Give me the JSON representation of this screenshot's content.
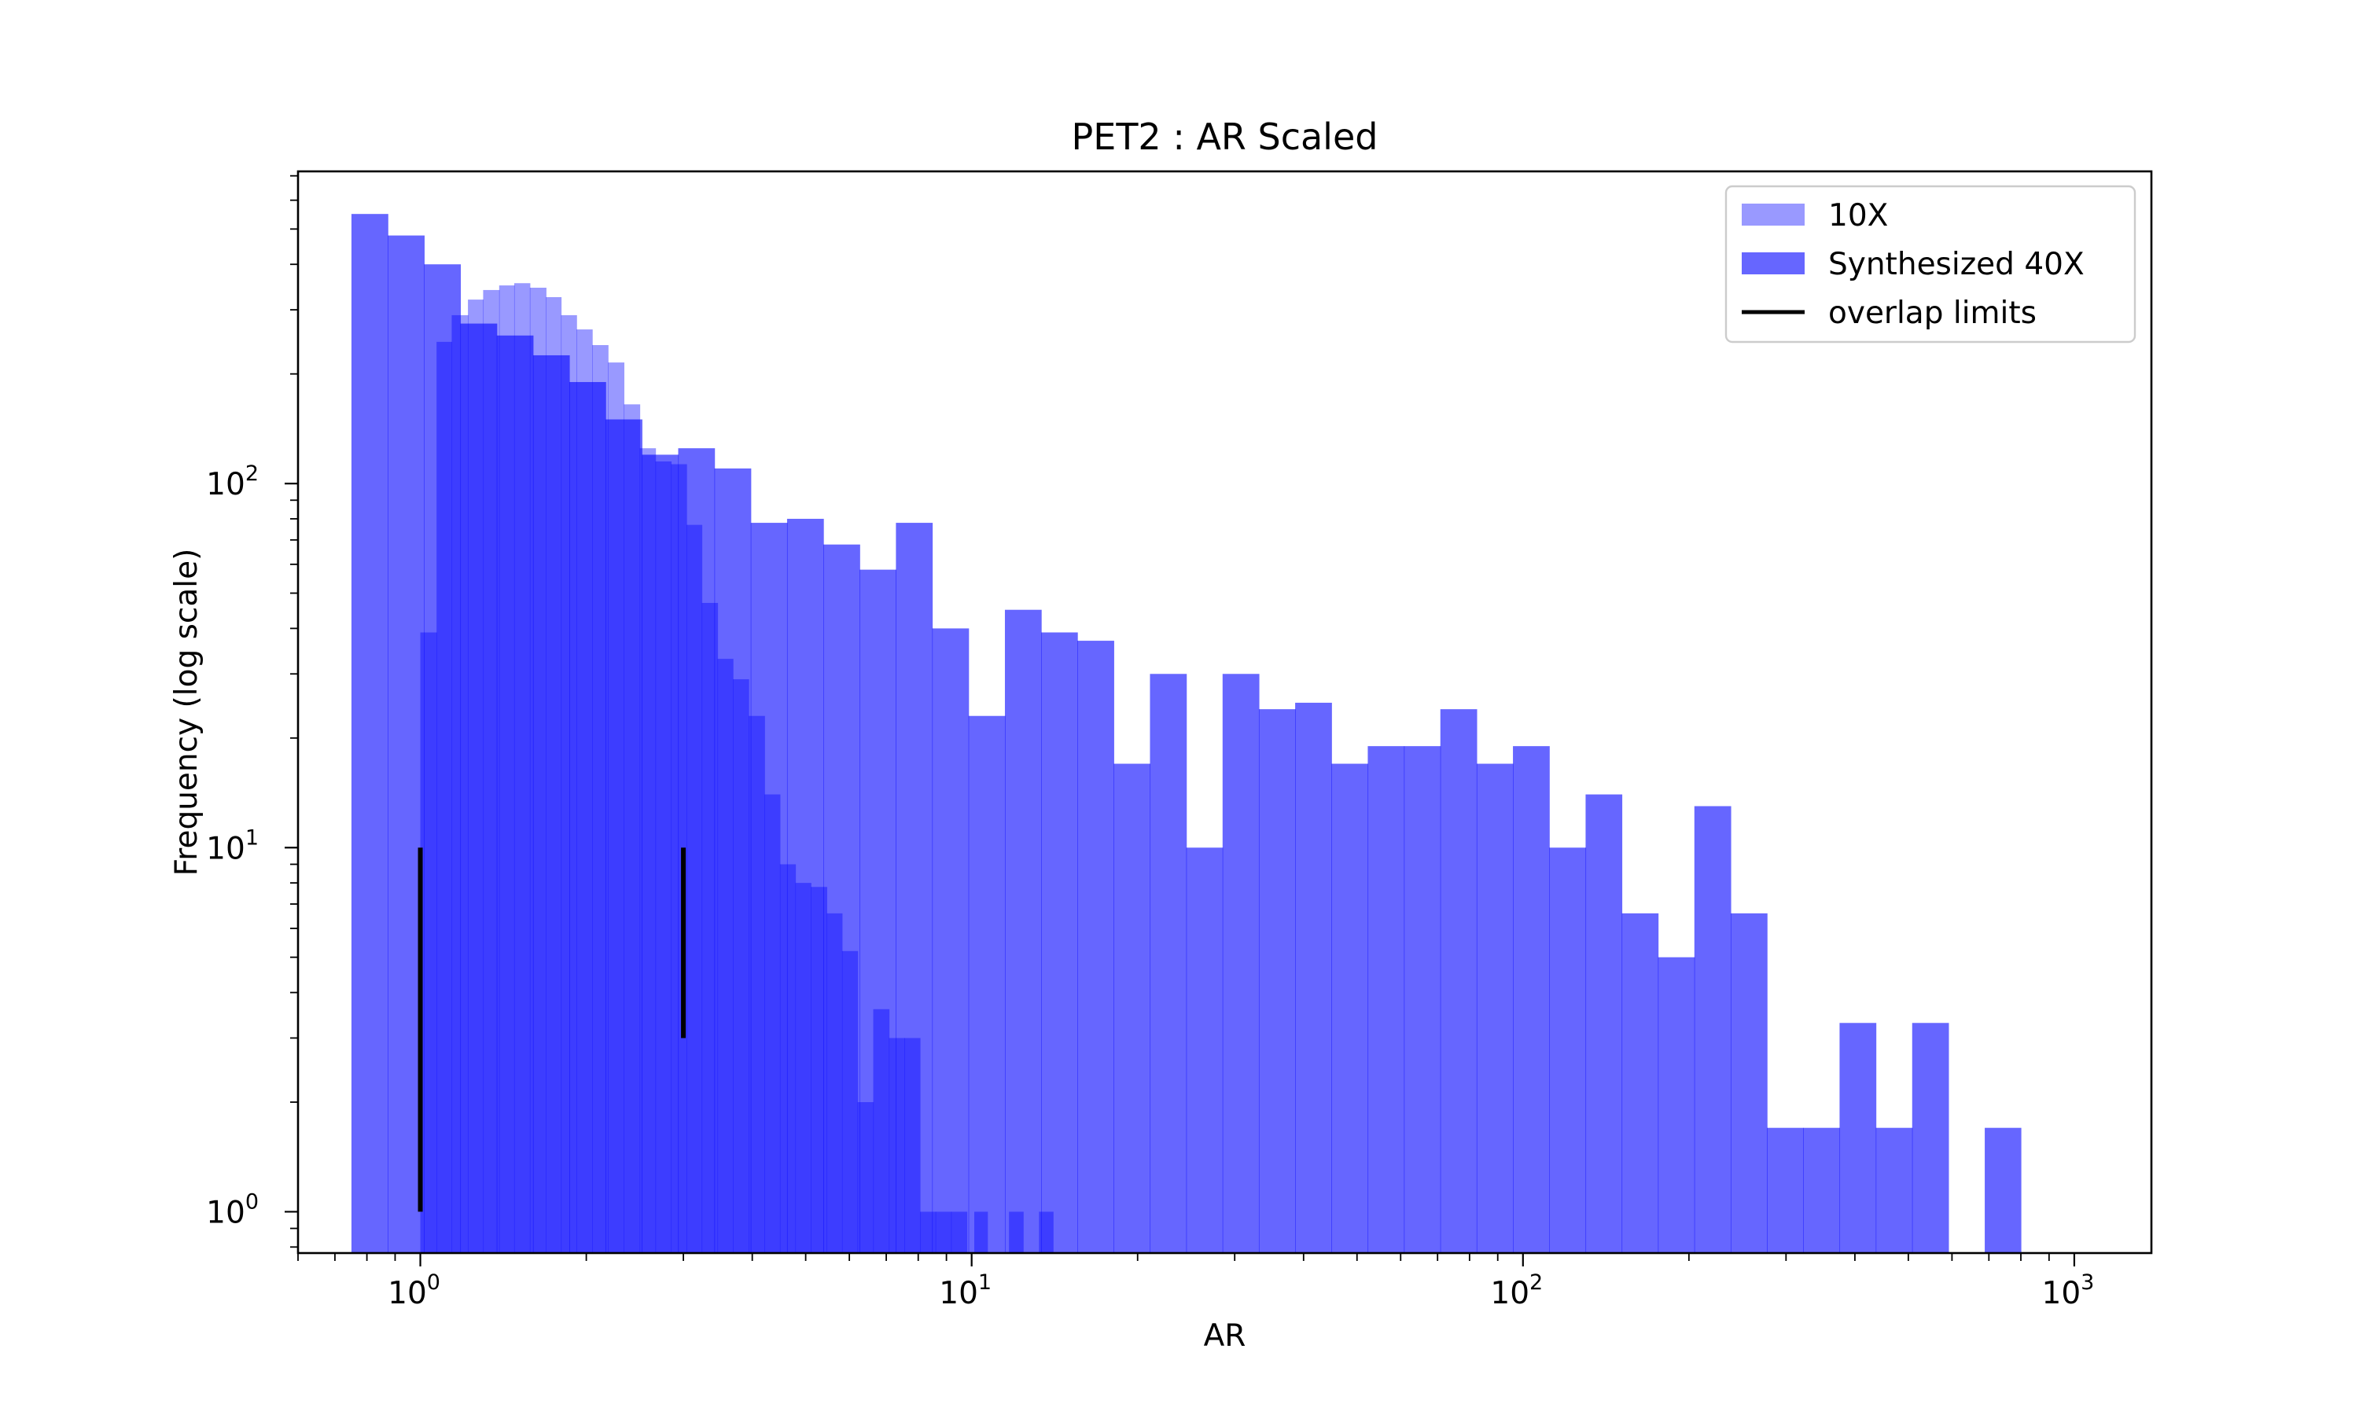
{
  "chart_data": {
    "type": "histogram",
    "title": "PET2 : AR Scaled",
    "xlabel": "AR",
    "ylabel": "Frequency (log scale)",
    "x_scale": "log",
    "y_scale": "log",
    "xlim": [
      0.6,
      1380
    ],
    "ylim": [
      0.77,
      720
    ],
    "x_ticks": [
      {
        "value": 1,
        "base": "10",
        "exp": "0"
      },
      {
        "value": 10,
        "base": "10",
        "exp": "1"
      },
      {
        "value": 100,
        "base": "10",
        "exp": "2"
      },
      {
        "value": 1000,
        "base": "10",
        "exp": "3"
      }
    ],
    "y_ticks": [
      {
        "value": 1,
        "base": "10",
        "exp": "0"
      },
      {
        "value": 10,
        "base": "10",
        "exp": "1"
      },
      {
        "value": 100,
        "base": "10",
        "exp": "2"
      }
    ],
    "legend": {
      "position": "upper right",
      "entries": [
        {
          "label": "10X",
          "kind": "patch",
          "color": "#9999ff"
        },
        {
          "label": "Synthesized 40X",
          "kind": "patch",
          "color": "#6666ff"
        },
        {
          "label": "overlap limits",
          "kind": "line",
          "color": "#000000"
        }
      ]
    },
    "series": [
      {
        "name": "10X",
        "color": "#0000ff",
        "opacity": 0.4,
        "bins": [
          [
            1.0,
            1.07,
            39
          ],
          [
            1.07,
            1.14,
            245
          ],
          [
            1.14,
            1.22,
            290
          ],
          [
            1.22,
            1.3,
            320
          ],
          [
            1.3,
            1.39,
            340
          ],
          [
            1.39,
            1.48,
            350
          ],
          [
            1.48,
            1.58,
            355
          ],
          [
            1.58,
            1.69,
            345
          ],
          [
            1.69,
            1.8,
            325
          ],
          [
            1.8,
            1.92,
            290
          ],
          [
            1.92,
            2.05,
            265
          ],
          [
            2.05,
            2.19,
            240
          ],
          [
            2.19,
            2.34,
            215
          ],
          [
            2.34,
            2.5,
            165
          ],
          [
            2.5,
            2.67,
            125
          ],
          [
            2.67,
            2.85,
            115
          ],
          [
            2.85,
            3.04,
            113
          ],
          [
            3.04,
            3.24,
            77
          ],
          [
            3.24,
            3.46,
            47
          ],
          [
            3.46,
            3.69,
            33
          ],
          [
            3.69,
            3.94,
            29
          ],
          [
            3.94,
            4.21,
            23
          ],
          [
            4.21,
            4.49,
            14
          ],
          [
            4.49,
            4.79,
            9
          ],
          [
            4.79,
            5.11,
            8
          ],
          [
            5.11,
            5.46,
            7.8
          ],
          [
            5.46,
            5.82,
            6.6
          ],
          [
            5.82,
            6.21,
            5.2
          ],
          [
            6.21,
            6.63,
            2.0
          ],
          [
            6.63,
            7.08,
            3.6
          ],
          [
            7.08,
            7.55,
            3.0
          ],
          [
            7.55,
            8.06,
            3.0
          ],
          [
            8.06,
            8.6,
            1.0
          ],
          [
            8.6,
            9.18,
            1.0
          ],
          [
            9.18,
            9.8,
            1.0
          ],
          [
            10.11,
            10.68,
            1.0
          ],
          [
            11.69,
            12.4,
            1.0
          ],
          [
            13.25,
            14.05,
            1.0
          ]
        ]
      },
      {
        "name": "Synthesized 40X",
        "color": "#0000ff",
        "opacity": 0.6,
        "bins": [
          [
            0.75,
            0.873,
            550
          ],
          [
            0.873,
            1.016,
            480
          ],
          [
            1.016,
            1.182,
            400
          ],
          [
            1.182,
            1.376,
            275
          ],
          [
            1.376,
            1.601,
            255
          ],
          [
            1.601,
            1.863,
            225
          ],
          [
            1.863,
            2.168,
            190
          ],
          [
            2.168,
            2.523,
            150
          ],
          [
            2.523,
            2.936,
            120
          ],
          [
            2.936,
            3.416,
            125
          ],
          [
            3.416,
            3.975,
            110
          ],
          [
            3.975,
            4.626,
            78
          ],
          [
            4.626,
            5.383,
            80
          ],
          [
            5.383,
            6.264,
            68
          ],
          [
            6.264,
            7.289,
            58
          ],
          [
            7.289,
            8.482,
            78
          ],
          [
            8.482,
            9.87,
            40
          ],
          [
            9.87,
            11.49,
            23
          ],
          [
            11.49,
            13.37,
            45
          ],
          [
            13.37,
            15.55,
            39
          ],
          [
            15.55,
            18.1,
            37
          ],
          [
            18.1,
            21.06,
            17
          ],
          [
            21.06,
            24.51,
            30
          ],
          [
            24.51,
            28.52,
            10
          ],
          [
            28.52,
            33.19,
            30
          ],
          [
            33.19,
            38.62,
            24
          ],
          [
            38.62,
            44.94,
            25
          ],
          [
            44.94,
            52.3,
            17
          ],
          [
            52.3,
            60.86,
            19
          ],
          [
            60.86,
            70.82,
            19
          ],
          [
            70.82,
            82.41,
            24
          ],
          [
            82.41,
            95.9,
            17
          ],
          [
            95.9,
            111.6,
            19
          ],
          [
            111.6,
            129.9,
            10
          ],
          [
            129.9,
            151.1,
            14
          ],
          [
            151.1,
            175.8,
            6.6
          ],
          [
            175.8,
            204.6,
            5.0
          ],
          [
            204.6,
            238.1,
            13
          ],
          [
            238.1,
            277.1,
            6.6
          ],
          [
            277.1,
            322.4,
            1.7
          ],
          [
            322.4,
            375.2,
            1.7
          ],
          [
            375.2,
            436.6,
            3.3
          ],
          [
            436.6,
            508.1,
            1.7
          ],
          [
            508.1,
            591.2,
            3.3
          ],
          [
            688.0,
            800.0,
            1.7
          ]
        ]
      }
    ],
    "overlap_limits": {
      "name": "overlap limits",
      "color": "#000000",
      "lines": [
        {
          "x": 1.0,
          "y_from": 1.0,
          "y_to": 10.0
        },
        {
          "x": 3.0,
          "y_from": 3.0,
          "y_to": 10.0
        }
      ]
    }
  }
}
